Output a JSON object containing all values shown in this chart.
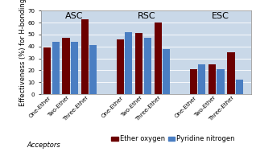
{
  "groups": [
    "ASC",
    "RSC",
    "ESC"
  ],
  "subgroups": [
    "One-Ether",
    "Two-Ether",
    "Three-Ether"
  ],
  "ether_oxygen": {
    "ASC": [
      39,
      47,
      63
    ],
    "RSC": [
      46,
      51,
      60
    ],
    "ESC": [
      21,
      25,
      35
    ]
  },
  "pyridine_nitrogen": {
    "ASC": [
      44,
      44,
      41
    ],
    "RSC": [
      52,
      47,
      38
    ],
    "ESC": [
      25,
      21,
      12
    ]
  },
  "bar_color_ether": "#6B0000",
  "bar_color_pyridine": "#4A7EC2",
  "background_color": "#C9D8E8",
  "ylabel": "Effectiveness (%) for H-bonding",
  "ylim": [
    0,
    70
  ],
  "yticks": [
    0,
    10,
    20,
    30,
    40,
    50,
    60,
    70
  ],
  "legend_label_1": "Ether oxygen",
  "legend_label_2": "Pyridine nitrogen",
  "legend_label_acceptors": "Acceptors",
  "group_label_fontsize": 8,
  "tick_fontsize": 5,
  "ylabel_fontsize": 6,
  "legend_fontsize": 6
}
